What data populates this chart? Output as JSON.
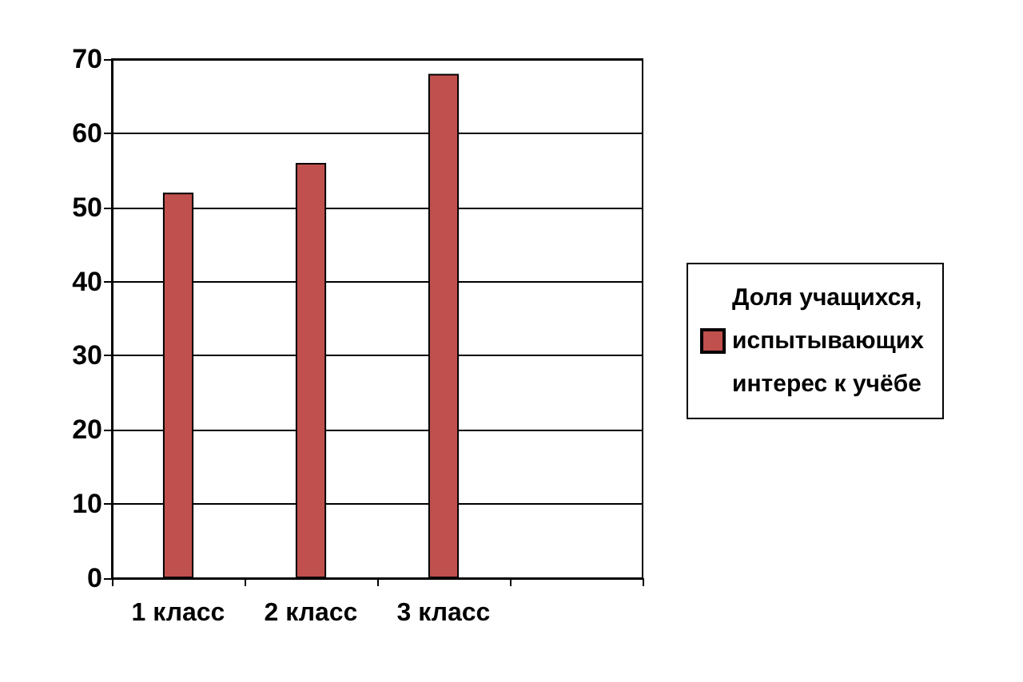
{
  "chart_data": {
    "type": "bar",
    "categories": [
      "1 класс",
      "2 класс",
      "3 класс",
      null
    ],
    "series": [
      {
        "name": "Доля учащихся, испытывающих интерес к учёбе",
        "color": "#c0504d",
        "values": [
          52,
          56,
          68,
          null
        ]
      }
    ],
    "ylim": [
      0,
      70
    ],
    "yticks": [
      0,
      10,
      20,
      30,
      40,
      50,
      60,
      70
    ],
    "grid": "y",
    "legend": "right"
  }
}
